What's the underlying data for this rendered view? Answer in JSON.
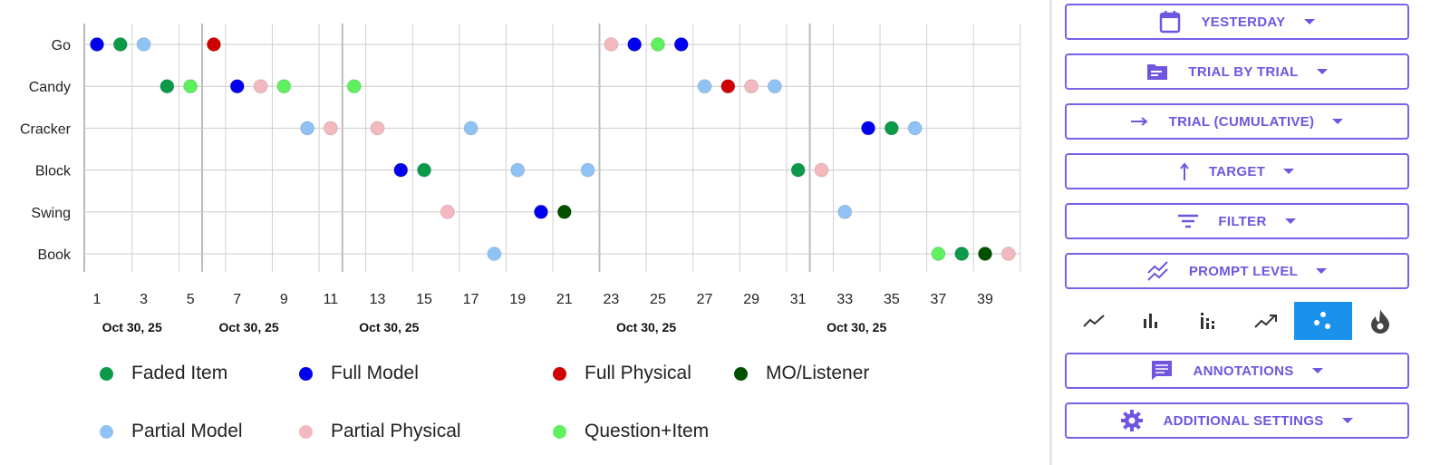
{
  "chart_data": {
    "type": "scatter",
    "y_categories": [
      "Go",
      "Candy",
      "Cracker",
      "Block",
      "Swing",
      "Book"
    ],
    "x_ticks": [
      1,
      3,
      5,
      7,
      9,
      11,
      13,
      15,
      17,
      19,
      21,
      23,
      25,
      27,
      29,
      31,
      33,
      35,
      37,
      39
    ],
    "xlim": [
      0.5,
      41
    ],
    "date_labels": [
      {
        "label": "Oct 30, 25",
        "at": 2.5
      },
      {
        "label": "Oct 30, 25",
        "at": 7.5
      },
      {
        "label": "Oct 30, 25",
        "at": 13.5
      },
      {
        "label": "Oct 30, 25",
        "at": 24.5
      },
      {
        "label": "Oct 30, 25",
        "at": 33.5
      }
    ],
    "session_breaks": [
      5.5,
      11.5,
      22.5,
      31.5
    ],
    "series": [
      {
        "name": "Faded Item",
        "color": "#0a9a4a",
        "points": [
          [
            "Go",
            2
          ],
          [
            "Candy",
            4
          ],
          [
            "Block",
            15
          ],
          [
            "Block",
            31
          ],
          [
            "Cracker",
            35
          ],
          [
            "Book",
            38
          ]
        ]
      },
      {
        "name": "Full Model",
        "color": "#0000ee",
        "points": [
          [
            "Go",
            1
          ],
          [
            "Candy",
            7
          ],
          [
            "Block",
            14
          ],
          [
            "Swing",
            20
          ],
          [
            "Go",
            24
          ],
          [
            "Go",
            26
          ],
          [
            "Cracker",
            34
          ]
        ]
      },
      {
        "name": "Full Physical",
        "color": "#d00000",
        "points": [
          [
            "Go",
            6
          ],
          [
            "Candy",
            28
          ]
        ]
      },
      {
        "name": "MO/Listener",
        "color": "#005000",
        "points": [
          [
            "Swing",
            21
          ],
          [
            "Book",
            39
          ]
        ]
      },
      {
        "name": "Partial Model",
        "color": "#8fc3f5",
        "points": [
          [
            "Go",
            3
          ],
          [
            "Cracker",
            10
          ],
          [
            "Cracker",
            17
          ],
          [
            "Book",
            18
          ],
          [
            "Block",
            19
          ],
          [
            "Block",
            22
          ],
          [
            "Candy",
            27
          ],
          [
            "Candy",
            30
          ],
          [
            "Swing",
            33
          ],
          [
            "Cracker",
            36
          ]
        ]
      },
      {
        "name": "Partial Physical",
        "color": "#f4b8bf",
        "points": [
          [
            "Candy",
            8
          ],
          [
            "Cracker",
            11
          ],
          [
            "Cracker",
            13
          ],
          [
            "Swing",
            16
          ],
          [
            "Go",
            23
          ],
          [
            "Candy",
            29
          ],
          [
            "Block",
            32
          ],
          [
            "Book",
            40
          ]
        ]
      },
      {
        "name": "Question+Item",
        "color": "#5ef05e",
        "points": [
          [
            "Candy",
            5
          ],
          [
            "Candy",
            9
          ],
          [
            "Candy",
            12
          ],
          [
            "Go",
            25
          ],
          [
            "Book",
            37
          ]
        ]
      }
    ]
  },
  "panel": {
    "buttons": [
      {
        "label": "YESTERDAY",
        "icon": "calendar-icon"
      },
      {
        "label": "TRIAL BY TRIAL",
        "icon": "folder-icon"
      },
      {
        "label": "TRIAL (CUMULATIVE)",
        "icon": "arrow-right-icon"
      },
      {
        "label": "TARGET",
        "icon": "arrow-up-icon"
      },
      {
        "label": "FILTER",
        "icon": "filter-icon"
      },
      {
        "label": "PROMPT LEVEL",
        "icon": "multiline-icon"
      },
      {
        "label": "ANNOTATIONS",
        "icon": "comment-icon"
      },
      {
        "label": "ADDITIONAL SETTINGS",
        "icon": "gear-icon"
      }
    ],
    "chart_types": [
      "line",
      "bar",
      "stacked-bar",
      "trend",
      "scatter",
      "heatmap"
    ],
    "active_chart_type": "scatter",
    "accent": "#6f55e0",
    "active_bg": "#1a91ea"
  }
}
